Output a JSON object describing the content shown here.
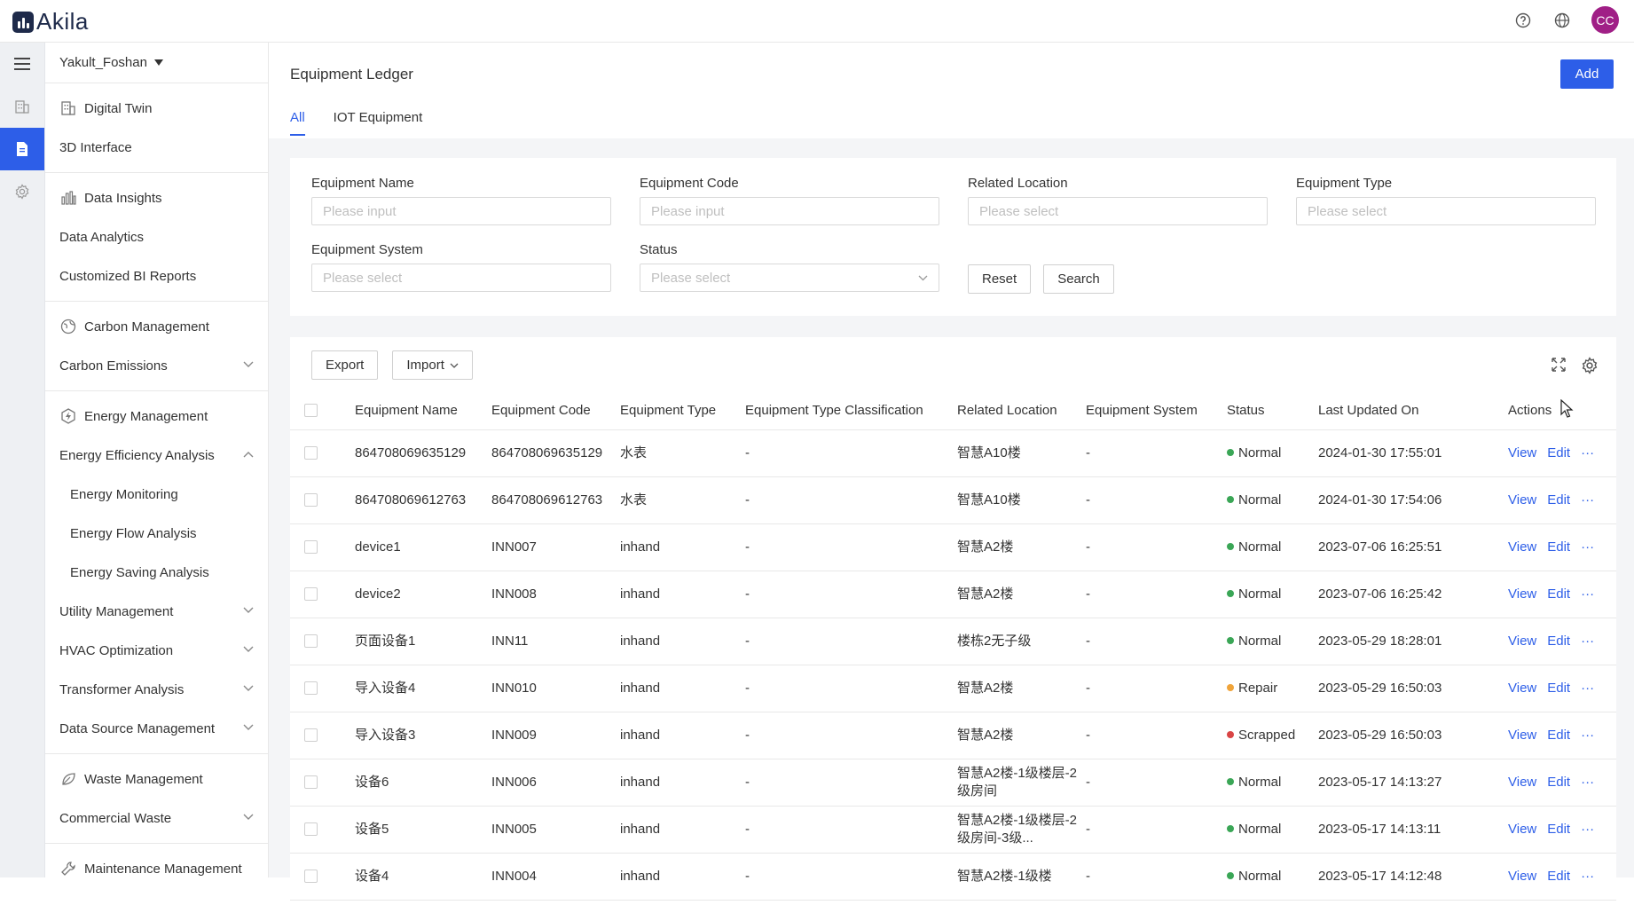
{
  "app": {
    "name": "Akila",
    "user_initials": "CC"
  },
  "colors": {
    "primary": "#2d5ee8",
    "normal": "#3aa656",
    "repair": "#f0a43a",
    "scrapped": "#d94545",
    "avatar": "#a01f86"
  },
  "rail": [
    {
      "icon": "menu-icon"
    },
    {
      "icon": "building-icon"
    },
    {
      "icon": "document-icon",
      "active": true
    },
    {
      "icon": "gear-icon"
    }
  ],
  "sidebar": {
    "site": "Yakult_Foshan",
    "groups": [
      {
        "items": [
          {
            "label": "Digital Twin",
            "icon": "building-icon"
          },
          {
            "label": "3D Interface"
          }
        ]
      },
      {
        "items": [
          {
            "label": "Data Insights",
            "icon": "bar-chart-icon"
          },
          {
            "label": "Data Analytics"
          },
          {
            "label": "Customized BI Reports"
          }
        ]
      },
      {
        "items": [
          {
            "label": "Carbon Management",
            "icon": "globe-leaf-icon"
          },
          {
            "label": "Carbon Emissions",
            "chevron": "down"
          }
        ]
      },
      {
        "items": [
          {
            "label": "Energy Management",
            "icon": "bolt-icon"
          },
          {
            "label": "Energy Efficiency Analysis",
            "chevron": "up"
          },
          {
            "label": "Energy Monitoring",
            "sub": true
          },
          {
            "label": "Energy Flow Analysis",
            "sub": true
          },
          {
            "label": "Energy Saving Analysis",
            "sub": true
          },
          {
            "label": "Utility Management",
            "chevron": "down"
          },
          {
            "label": "HVAC Optimization",
            "chevron": "down"
          },
          {
            "label": "Transformer Analysis",
            "chevron": "down"
          },
          {
            "label": "Data Source Management",
            "chevron": "down"
          }
        ]
      },
      {
        "items": [
          {
            "label": "Waste Management",
            "icon": "leaf-icon"
          },
          {
            "label": "Commercial Waste",
            "chevron": "down"
          }
        ]
      },
      {
        "items": [
          {
            "label": "Maintenance Management",
            "icon": "wrench-icon"
          }
        ]
      }
    ]
  },
  "page": {
    "title": "Equipment Ledger",
    "add_label": "Add",
    "tabs": [
      "All",
      "IOT Equipment"
    ]
  },
  "filters": {
    "equipment_name": {
      "label": "Equipment Name",
      "placeholder": "Please input"
    },
    "equipment_code": {
      "label": "Equipment Code",
      "placeholder": "Please input"
    },
    "related_location": {
      "label": "Related Location",
      "placeholder": "Please select"
    },
    "equipment_type": {
      "label": "Equipment Type",
      "placeholder": "Please select"
    },
    "equipment_system": {
      "label": "Equipment System",
      "placeholder": "Please select"
    },
    "status": {
      "label": "Status",
      "placeholder": "Please select"
    },
    "reset_label": "Reset",
    "search_label": "Search"
  },
  "toolbar": {
    "export_label": "Export",
    "import_label": "Import"
  },
  "table": {
    "columns": [
      "Equipment Name",
      "Equipment Code",
      "Equipment Type",
      "Equipment Type Classification",
      "Related Location",
      "Equipment System",
      "Status",
      "Last Updated On",
      "Actions"
    ],
    "action_labels": {
      "view": "View",
      "edit": "Edit",
      "more": "···"
    },
    "rows": [
      {
        "name": "864708069635129",
        "code": "864708069635129",
        "type": "水表",
        "classification": "-",
        "location": "智慧A10楼",
        "system": "-",
        "status": "Normal",
        "updated": "2024-01-30 17:55:01"
      },
      {
        "name": "864708069612763",
        "code": "864708069612763",
        "type": "水表",
        "classification": "-",
        "location": "智慧A10楼",
        "system": "-",
        "status": "Normal",
        "updated": "2024-01-30 17:54:06"
      },
      {
        "name": "device1",
        "code": "INN007",
        "type": "inhand",
        "classification": "-",
        "location": "智慧A2楼",
        "system": "-",
        "status": "Normal",
        "updated": "2023-07-06 16:25:51"
      },
      {
        "name": "device2",
        "code": "INN008",
        "type": "inhand",
        "classification": "-",
        "location": "智慧A2楼",
        "system": "-",
        "status": "Normal",
        "updated": "2023-07-06 16:25:42"
      },
      {
        "name": "页面设备1",
        "code": "INN11",
        "type": "inhand",
        "classification": "-",
        "location": "楼栋2无子级",
        "system": "-",
        "status": "Normal",
        "updated": "2023-05-29 18:28:01"
      },
      {
        "name": "导入设备4",
        "code": "INN010",
        "type": "inhand",
        "classification": "-",
        "location": "智慧A2楼",
        "system": "-",
        "status": "Repair",
        "updated": "2023-05-29 16:50:03"
      },
      {
        "name": "导入设备3",
        "code": "INN009",
        "type": "inhand",
        "classification": "-",
        "location": "智慧A2楼",
        "system": "-",
        "status": "Scrapped",
        "updated": "2023-05-29 16:50:03"
      },
      {
        "name": "设备6",
        "code": "INN006",
        "type": "inhand",
        "classification": "-",
        "location": "智慧A2楼-1级楼层-2级房间",
        "system": "-",
        "status": "Normal",
        "updated": "2023-05-17 14:13:27"
      },
      {
        "name": "设备5",
        "code": "INN005",
        "type": "inhand",
        "classification": "-",
        "location": "智慧A2楼-1级楼层-2级房间-3级...",
        "system": "-",
        "status": "Normal",
        "updated": "2023-05-17 14:13:11"
      },
      {
        "name": "设备4",
        "code": "INN004",
        "type": "inhand",
        "classification": "-",
        "location": "智慧A2楼-1级楼",
        "system": "-",
        "status": "Normal",
        "updated": "2023-05-17 14:12:48"
      }
    ]
  }
}
